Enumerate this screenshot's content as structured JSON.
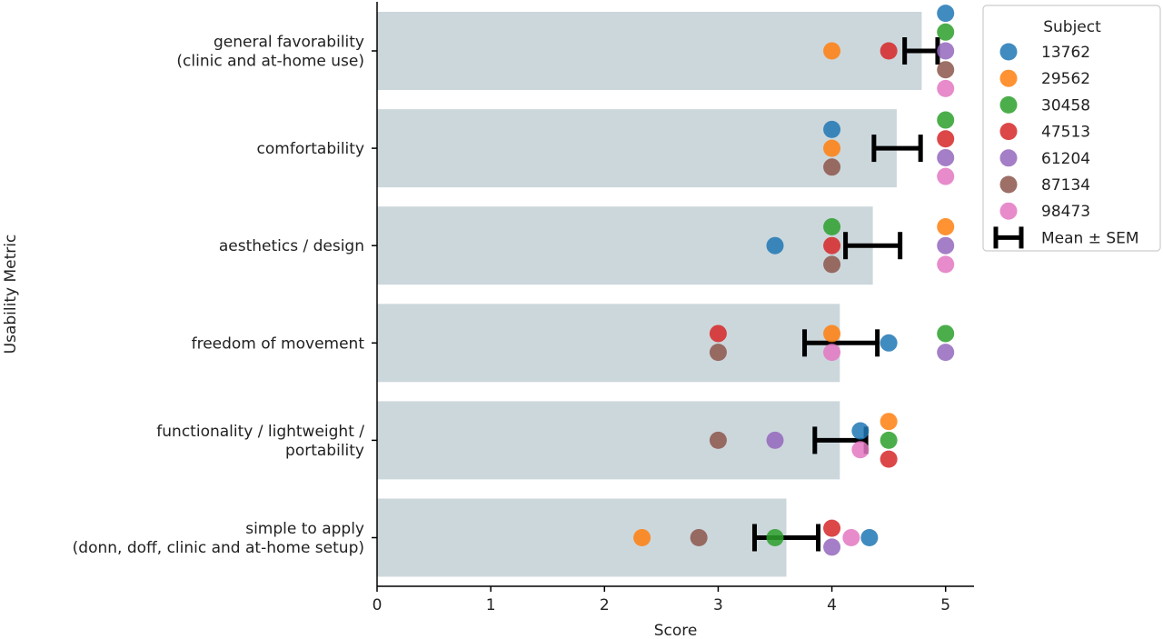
{
  "chart_data": {
    "type": "bar",
    "orientation": "horizontal",
    "xlabel": "Score",
    "ylabel": "Usability Metric",
    "xlim": [
      0,
      5.25
    ],
    "xticks": [
      0,
      1,
      2,
      3,
      4,
      5
    ],
    "grid": false,
    "bar_color": "#ccd7dc",
    "categories": [
      [
        "general favorability",
        "(clinic and at-home use)"
      ],
      [
        "comfortability"
      ],
      [
        "aesthetics / design"
      ],
      [
        "freedom of movement"
      ],
      [
        "functionality / lightweight /",
        "portability"
      ],
      [
        "simple to apply",
        "(donn, doff, clinic and at-home setup)"
      ]
    ],
    "means": [
      4.79,
      4.57,
      4.36,
      4.07,
      4.07,
      3.6
    ],
    "errorbars": [
      {
        "low": 4.64,
        "high": 4.93
      },
      {
        "low": 4.37,
        "high": 4.78
      },
      {
        "low": 4.12,
        "high": 4.6
      },
      {
        "low": 3.76,
        "high": 4.4
      },
      {
        "low": 3.85,
        "high": 4.3
      },
      {
        "low": 3.32,
        "high": 3.88
      }
    ],
    "series": [
      {
        "name": "13762",
        "color": "#1f77b4",
        "values": [
          5,
          4,
          3.5,
          4.5,
          4.25,
          4.33
        ]
      },
      {
        "name": "29562",
        "color": "#ff7f0e",
        "values": [
          4,
          4,
          5,
          4,
          4.5,
          2.33
        ]
      },
      {
        "name": "30458",
        "color": "#2ca02c",
        "values": [
          5,
          5,
          4,
          5,
          4.5,
          3.5
        ]
      },
      {
        "name": "47513",
        "color": "#d62728",
        "values": [
          4.5,
          5,
          4,
          3,
          4.5,
          4
        ]
      },
      {
        "name": "61204",
        "color": "#9467bd",
        "values": [
          5,
          5,
          5,
          5,
          3.5,
          4
        ]
      },
      {
        "name": "87134",
        "color": "#8c564b",
        "values": [
          5,
          4,
          4,
          3,
          3,
          2.83
        ]
      },
      {
        "name": "98473",
        "color": "#e377c2",
        "values": [
          5,
          5,
          5,
          4,
          4.25,
          4.17
        ]
      }
    ],
    "legend": {
      "title": "Subject",
      "placement": "upper-right-outside",
      "errorbar_label": "Mean ± SEM"
    }
  }
}
